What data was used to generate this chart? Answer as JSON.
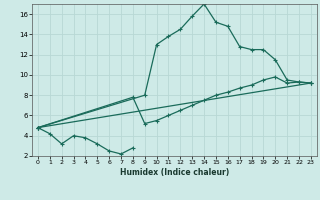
{
  "xlabel": "Humidex (Indice chaleur)",
  "bg_color": "#ceeae7",
  "grid_color": "#b8d8d5",
  "line_color": "#1a6b5a",
  "xlim": [
    -0.5,
    23.5
  ],
  "ylim": [
    2,
    17
  ],
  "xticks": [
    0,
    1,
    2,
    3,
    4,
    5,
    6,
    7,
    8,
    9,
    10,
    11,
    12,
    13,
    14,
    15,
    16,
    17,
    18,
    19,
    20,
    21,
    22,
    23
  ],
  "yticks": [
    2,
    4,
    6,
    8,
    10,
    12,
    14,
    16
  ],
  "series1_x": [
    0,
    1,
    2,
    3,
    4,
    5,
    6,
    7,
    8
  ],
  "series1_y": [
    4.8,
    4.2,
    3.2,
    4.0,
    3.8,
    3.2,
    2.5,
    2.2,
    2.8
  ],
  "series2_x": [
    0,
    9,
    10,
    11,
    12,
    13,
    14,
    15,
    16,
    17,
    18,
    19,
    20,
    21,
    22,
    23
  ],
  "series2_y": [
    4.8,
    8.0,
    13.0,
    13.8,
    14.5,
    15.8,
    17.0,
    15.2,
    14.8,
    12.8,
    12.5,
    12.5,
    11.5,
    9.5,
    9.3,
    9.2
  ],
  "series3_x": [
    0,
    23
  ],
  "series3_y": [
    4.8,
    9.2
  ],
  "series4_x": [
    0,
    8,
    9,
    10,
    11,
    12,
    13,
    14,
    15,
    16,
    17,
    18,
    19,
    20,
    21,
    22,
    23
  ],
  "series4_y": [
    4.8,
    7.8,
    5.2,
    5.5,
    6.0,
    6.5,
    7.0,
    7.5,
    8.0,
    8.3,
    8.7,
    9.0,
    9.5,
    9.8,
    9.2,
    9.3,
    9.2
  ]
}
